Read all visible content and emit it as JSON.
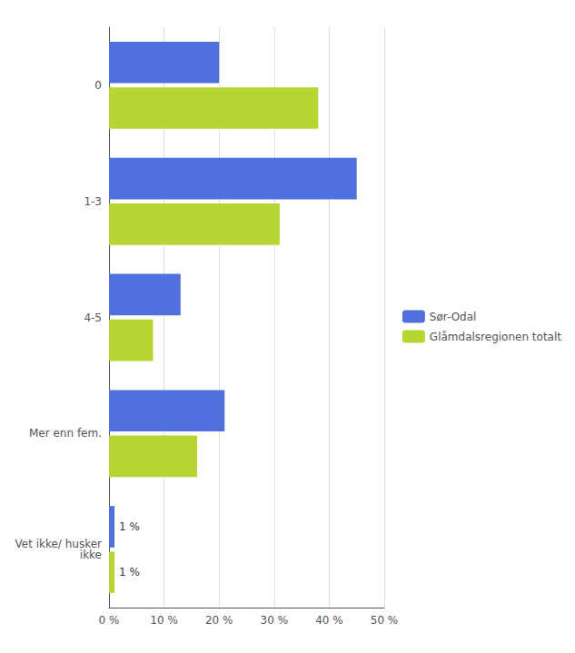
{
  "chart_data": {
    "type": "bar",
    "orientation": "horizontal",
    "categories": [
      "0",
      "1-3",
      "4-5",
      "Mer enn fem.",
      "Vet ikke/ husker\nikke"
    ],
    "series": [
      {
        "name": "Sør-Odal",
        "values": [
          20,
          45,
          13,
          21,
          1
        ],
        "value_labels": [
          null,
          null,
          null,
          null,
          "1 %"
        ]
      },
      {
        "name": "Glåmdalsregionen totalt",
        "values": [
          38,
          31,
          8,
          16,
          1
        ],
        "value_labels": [
          null,
          null,
          null,
          null,
          "1 %"
        ]
      }
    ],
    "xlim": [
      0,
      50
    ],
    "xticks": [
      {
        "value": 0,
        "label": "0 %"
      },
      {
        "value": 10,
        "label": "10 %"
      },
      {
        "value": 20,
        "label": "20 %"
      },
      {
        "value": 30,
        "label": "30 %"
      },
      {
        "value": 40,
        "label": "40 %"
      },
      {
        "value": 50,
        "label": "50 %"
      }
    ],
    "grid": true,
    "legend": "right"
  }
}
